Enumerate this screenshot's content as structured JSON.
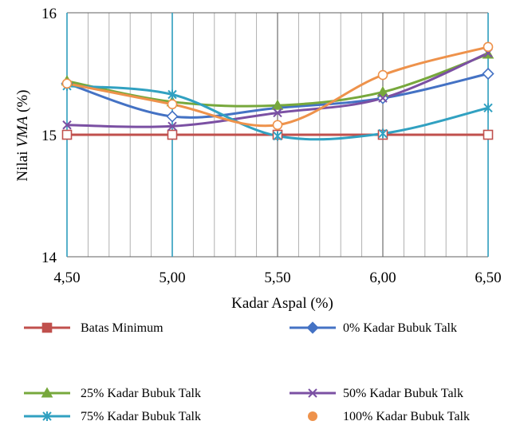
{
  "chart_data": {
    "type": "line",
    "title": "",
    "xlabel": "Kadar Aspal (%)",
    "ylabel": "Nilai VMA (%)",
    "x": [
      4.5,
      5.0,
      5.5,
      6.0,
      6.5
    ],
    "x_tick_labels": [
      "4,50",
      "5,00",
      "5,50",
      "6,00",
      "6,50"
    ],
    "xlim": [
      4.5,
      6.5
    ],
    "y_ticks": [
      14,
      15,
      16
    ],
    "y_tick_labels": [
      "14",
      "15",
      "16"
    ],
    "ylim": [
      14,
      16
    ],
    "grid": "vertical",
    "legend_position": "bottom",
    "series": [
      {
        "name": "Batas Minimum",
        "values": [
          15.0,
          15.0,
          15.0,
          15.0,
          15.0
        ],
        "color": "#c0504d",
        "marker": "square-open"
      },
      {
        "name": "0% Kadar Bubuk Talk",
        "values": [
          15.42,
          15.15,
          15.22,
          15.3,
          15.5
        ],
        "color": "#4472c4",
        "marker": "diamond-open"
      },
      {
        "name": "25% Kadar Bubuk Talk",
        "values": [
          15.44,
          15.27,
          15.24,
          15.35,
          15.66
        ],
        "color": "#77a83c",
        "marker": "triangle"
      },
      {
        "name": "50% Kadar Bubuk Talk",
        "values": [
          15.08,
          15.07,
          15.18,
          15.3,
          15.67
        ],
        "color": "#7b50a3",
        "marker": "x"
      },
      {
        "name": "75% Kadar Bubuk Talk",
        "values": [
          15.4,
          15.33,
          14.99,
          15.01,
          15.22
        ],
        "color": "#31a1c1",
        "marker": "star"
      },
      {
        "name": "100% Kadar Bubuk Talk",
        "values": [
          15.42,
          15.25,
          15.08,
          15.49,
          15.72
        ],
        "color": "#ee924b",
        "marker": "circle-open"
      }
    ]
  }
}
